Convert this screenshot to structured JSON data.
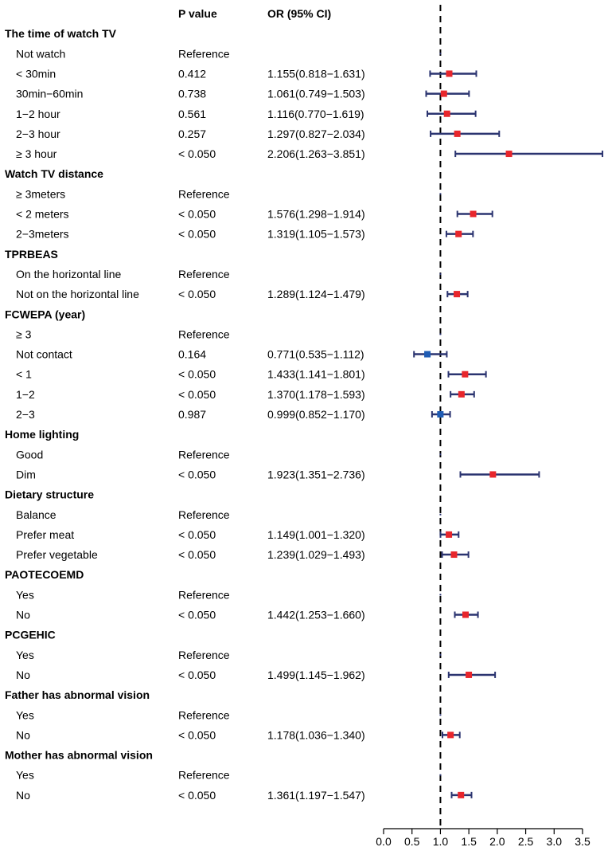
{
  "chart_data": {
    "type": "forest",
    "headers": {
      "pvalue": "P value",
      "or": "OR (95% CI)"
    },
    "xlim": [
      0.0,
      3.5
    ],
    "xticks": [
      "0.0",
      "0.5",
      "1.0",
      "1.5",
      "2.0",
      "2.5",
      "3.0",
      "3.5"
    ],
    "reference_line": 1.0,
    "colors": {
      "above": "#e8262c",
      "below": "#1f5cb4",
      "ci": "#2b3470"
    },
    "rows": [
      {
        "group": "The time of watch TV"
      },
      {
        "label": "Not watch",
        "p": "Reference"
      },
      {
        "label": "< 30min",
        "p": "0.412",
        "or": "1.155(0.818−1.631)",
        "est": 1.155,
        "lo": 0.818,
        "hi": 1.631
      },
      {
        "label": "30min−60min",
        "p": "0.738",
        "or": "1.061(0.749−1.503)",
        "est": 1.061,
        "lo": 0.749,
        "hi": 1.503
      },
      {
        "label": "1−2 hour",
        "p": "0.561",
        "or": "1.116(0.770−1.619)",
        "est": 1.116,
        "lo": 0.77,
        "hi": 1.619
      },
      {
        "label": "2−3 hour",
        "p": "0.257",
        "or": "1.297(0.827−2.034)",
        "est": 1.297,
        "lo": 0.827,
        "hi": 2.034
      },
      {
        "label": "≥ 3 hour",
        "p": "< 0.050",
        "or": "2.206(1.263−3.851)",
        "est": 2.206,
        "lo": 1.263,
        "hi": 3.851
      },
      {
        "group": "Watch TV distance"
      },
      {
        "label": "≥ 3meters",
        "p": "Reference"
      },
      {
        "label": "< 2 meters",
        "p": "< 0.050",
        "or": "1.576(1.298−1.914)",
        "est": 1.576,
        "lo": 1.298,
        "hi": 1.914
      },
      {
        "label": "2−3meters",
        "p": "< 0.050",
        "or": "1.319(1.105−1.573)",
        "est": 1.319,
        "lo": 1.105,
        "hi": 1.573
      },
      {
        "group": "TPRBEAS"
      },
      {
        "label": "On the horizontal line",
        "p": "Reference"
      },
      {
        "label": "Not on the horizontal line",
        "p": "< 0.050",
        "or": "1.289(1.124−1.479)",
        "est": 1.289,
        "lo": 1.124,
        "hi": 1.479
      },
      {
        "group": "FCWEPA (year)"
      },
      {
        "label": "≥ 3",
        "p": "Reference"
      },
      {
        "label": "Not contact",
        "p": "0.164",
        "or": "0.771(0.535−1.112)",
        "est": 0.771,
        "lo": 0.535,
        "hi": 1.112
      },
      {
        "label": "< 1",
        "p": "< 0.050",
        "or": "1.433(1.141−1.801)",
        "est": 1.433,
        "lo": 1.141,
        "hi": 1.801
      },
      {
        "label": "1−2",
        "p": "< 0.050",
        "or": "1.370(1.178−1.593)",
        "est": 1.37,
        "lo": 1.178,
        "hi": 1.593
      },
      {
        "label": "2−3",
        "p": "0.987",
        "or": "0.999(0.852−1.170)",
        "est": 0.999,
        "lo": 0.852,
        "hi": 1.17
      },
      {
        "group": "Home lighting"
      },
      {
        "label": "Good",
        "p": "Reference"
      },
      {
        "label": "Dim",
        "p": "< 0.050",
        "or": "1.923(1.351−2.736)",
        "est": 1.923,
        "lo": 1.351,
        "hi": 2.736
      },
      {
        "group": "Dietary structure"
      },
      {
        "label": "Balance",
        "p": "Reference"
      },
      {
        "label": "Prefer meat",
        "p": "< 0.050",
        "or": "1.149(1.001−1.320)",
        "est": 1.149,
        "lo": 1.001,
        "hi": 1.32
      },
      {
        "label": "Prefer vegetable",
        "p": "< 0.050",
        "or": "1.239(1.029−1.493)",
        "est": 1.239,
        "lo": 1.029,
        "hi": 1.493
      },
      {
        "group": "PAOTECOEMD"
      },
      {
        "label": "Yes",
        "p": "Reference"
      },
      {
        "label": "No",
        "p": "< 0.050",
        "or": "1.442(1.253−1.660)",
        "est": 1.442,
        "lo": 1.253,
        "hi": 1.66
      },
      {
        "group": "PCGEHIC"
      },
      {
        "label": "Yes",
        "p": "Reference"
      },
      {
        "label": "No",
        "p": "< 0.050",
        "or": "1.499(1.145−1.962)",
        "est": 1.499,
        "lo": 1.145,
        "hi": 1.962
      },
      {
        "group": "Father has abnormal vision"
      },
      {
        "label": "Yes",
        "p": "Reference"
      },
      {
        "label": "No",
        "p": "< 0.050",
        "or": "1.178(1.036−1.340)",
        "est": 1.178,
        "lo": 1.036,
        "hi": 1.34
      },
      {
        "group": "Mother has abnormal vision"
      },
      {
        "label": "Yes",
        "p": "Reference"
      },
      {
        "label": "No",
        "p": "< 0.050",
        "or": "1.361(1.197−1.547)",
        "est": 1.361,
        "lo": 1.197,
        "hi": 1.547
      }
    ]
  }
}
